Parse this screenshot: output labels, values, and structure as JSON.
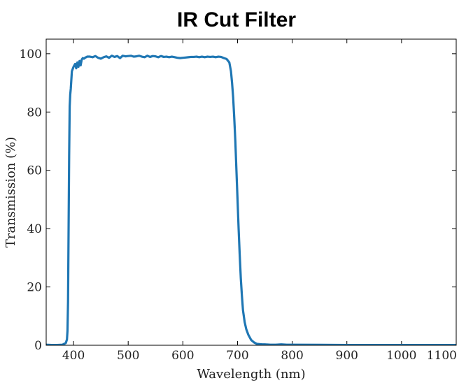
{
  "chart_data": {
    "type": "line",
    "title": "IR Cut Filter",
    "xlabel": "Wavelength (nm)",
    "ylabel": "Transmission (%)",
    "xlim": [
      350,
      1100
    ],
    "ylim": [
      0,
      105
    ],
    "xticks": [
      400,
      500,
      600,
      700,
      800,
      900,
      1000,
      1100
    ],
    "yticks": [
      0,
      20,
      40,
      60,
      80,
      100
    ],
    "grid": false,
    "legend": "none",
    "series": [
      {
        "color": "#1f77b4",
        "x": [
          350,
          360,
          370,
          380,
          383,
          386,
          388,
          389,
          390,
          391,
          392,
          393,
          394,
          395,
          397,
          400,
          403,
          405,
          407,
          409,
          411,
          413,
          415,
          417,
          419,
          421,
          425,
          430,
          435,
          440,
          445,
          450,
          455,
          460,
          465,
          470,
          475,
          480,
          485,
          490,
          495,
          500,
          505,
          510,
          515,
          520,
          525,
          530,
          535,
          540,
          545,
          550,
          555,
          560,
          565,
          570,
          575,
          580,
          585,
          590,
          595,
          600,
          605,
          610,
          615,
          620,
          625,
          630,
          635,
          640,
          645,
          650,
          655,
          660,
          665,
          670,
          675,
          680,
          685,
          688,
          690,
          692,
          694,
          696,
          698,
          700,
          702,
          704,
          706,
          708,
          710,
          713,
          716,
          720,
          725,
          730,
          735,
          740,
          745,
          750,
          760,
          770,
          780,
          790,
          800,
          850,
          900,
          950,
          1000,
          1050,
          1100
        ],
        "y": [
          0.2,
          0.1,
          0.1,
          0.2,
          0.5,
          0.8,
          2,
          5,
          15,
          40,
          65,
          82,
          86,
          88,
          94,
          95.5,
          96.5,
          95,
          97,
          95.5,
          97.5,
          96,
          98,
          98.5,
          98.3,
          98.6,
          99,
          99,
          98.8,
          99.2,
          98.6,
          98.3,
          98.8,
          99.1,
          98.6,
          99.3,
          98.9,
          99.2,
          98.5,
          99.3,
          99.1,
          99.2,
          99.3,
          99,
          99.1,
          99.3,
          99,
          98.8,
          99.3,
          98.9,
          99.2,
          99.1,
          98.8,
          99.2,
          98.9,
          99,
          98.8,
          99,
          98.8,
          98.6,
          98.5,
          98.6,
          98.7,
          98.8,
          98.9,
          98.9,
          99,
          98.8,
          99,
          98.8,
          99,
          98.9,
          99,
          98.8,
          99,
          98.9,
          98.5,
          98.2,
          97,
          94,
          90,
          85,
          78,
          70,
          60,
          50,
          40,
          31,
          23,
          17,
          12,
          8,
          5.5,
          3.5,
          1.8,
          1,
          0.5,
          0.4,
          0.3,
          0.3,
          0.2,
          0.2,
          0.3,
          0.2,
          0.2,
          0.15,
          0.1,
          0.1,
          0.1,
          0.1,
          0.1
        ]
      }
    ]
  }
}
